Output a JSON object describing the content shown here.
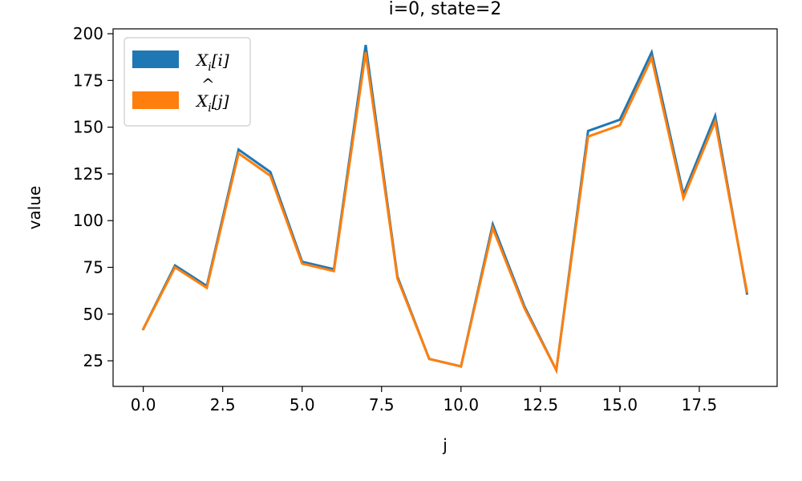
{
  "chart_data": {
    "type": "line",
    "title": "i=0, state=2",
    "xlabel": "j",
    "ylabel": "value",
    "xlim": [
      -0.95,
      19.95
    ],
    "ylim": [
      11.3,
      202.6
    ],
    "xticks": [
      0.0,
      2.5,
      5.0,
      7.5,
      10.0,
      12.5,
      15.0,
      17.5
    ],
    "xtick_labels": [
      "0.0",
      "2.5",
      "5.0",
      "7.5",
      "10.0",
      "12.5",
      "15.0",
      "17.5"
    ],
    "yticks": [
      25,
      50,
      75,
      100,
      125,
      150,
      175,
      200
    ],
    "ytick_labels": [
      "25",
      "50",
      "75",
      "100",
      "125",
      "150",
      "175",
      "200"
    ],
    "x": [
      0,
      1,
      2,
      3,
      4,
      5,
      6,
      7,
      8,
      9,
      10,
      11,
      12,
      13,
      14,
      15,
      16,
      17,
      18,
      19
    ],
    "series": [
      {
        "name": "X_i[i]",
        "color": "#1f77b4",
        "values": [
          42,
          76,
          65,
          138,
          126,
          78,
          74,
          194,
          70,
          26,
          22,
          98,
          54,
          20,
          148,
          154,
          190,
          114,
          156,
          61
        ]
      },
      {
        "name": "X̂_i[j]",
        "color": "#ff7f0e",
        "values": [
          42,
          75,
          64,
          136,
          124,
          77,
          73,
          190,
          69,
          26,
          22,
          96,
          53,
          20,
          145,
          151,
          187,
          112,
          153,
          62
        ]
      }
    ],
    "legend": {
      "position": "upper-left",
      "entries": [
        {
          "base": "X",
          "hat": "",
          "sub": "i",
          "arg": "[i]"
        },
        {
          "base": "X",
          "hat": "^",
          "sub": "i",
          "arg": "[j]"
        }
      ]
    },
    "grid": false
  }
}
